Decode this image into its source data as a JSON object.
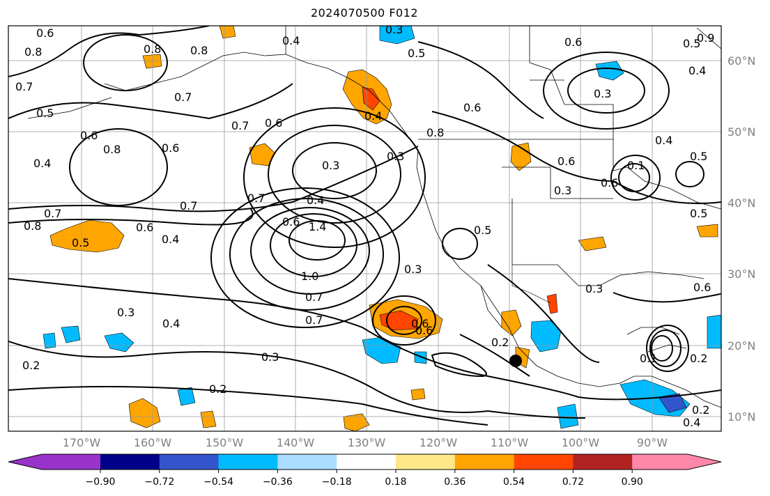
{
  "title": "2024070500 F012",
  "latitude_labels": [
    "60°N",
    "50°N",
    "40°N",
    "30°N",
    "20°N",
    "10°N"
  ],
  "longitude_labels": [
    "170°W",
    "160°W",
    "150°W",
    "140°W",
    "130°W",
    "120°W",
    "110°W",
    "100°W",
    "90°W"
  ],
  "colorbar": {
    "ticks": [
      "−0.90",
      "−0.72",
      "−0.54",
      "−0.36",
      "−0.18",
      "0.18",
      "0.36",
      "0.54",
      "0.72",
      "0.90"
    ],
    "colors": [
      "#9933cc",
      "#000088",
      "#3355cc",
      "#00bbff",
      "#aaddff",
      "#ffffff",
      "#ffe888",
      "#ffa500",
      "#ff4500",
      "#b22222",
      "#ff88aa"
    ]
  },
  "contour_labels": [
    "0.6",
    "0.8",
    "0.7",
    "0.5",
    "0.4",
    "0.8",
    "0.7",
    "0.4",
    "0.5",
    "0.6",
    "0.7",
    "0.6",
    "0.8",
    "0.6",
    "0.3",
    "0.4",
    "0.6",
    "0.7",
    "0.8",
    "0.6",
    "0.5",
    "0.7",
    "0.4",
    "0.6",
    "0.8",
    "0.7",
    "0.6",
    "0.7",
    "0.8",
    "0.6",
    "0.4",
    "1.4",
    "1.0",
    "0.7",
    "0.3",
    "0.5",
    "0.6",
    "0.3",
    "0.3",
    "0.3",
    "0.4",
    "0.2",
    "0.3",
    "0.2",
    "0.2",
    "0.6",
    "0.5",
    "0.4",
    "0.1",
    "0.5",
    "0.6",
    "0.3",
    "0.6",
    "0.3",
    "0.4",
    "0.2",
    "0.2",
    "0.4",
    "0.5",
    "0.3",
    "0.9",
    "0.1"
  ]
}
